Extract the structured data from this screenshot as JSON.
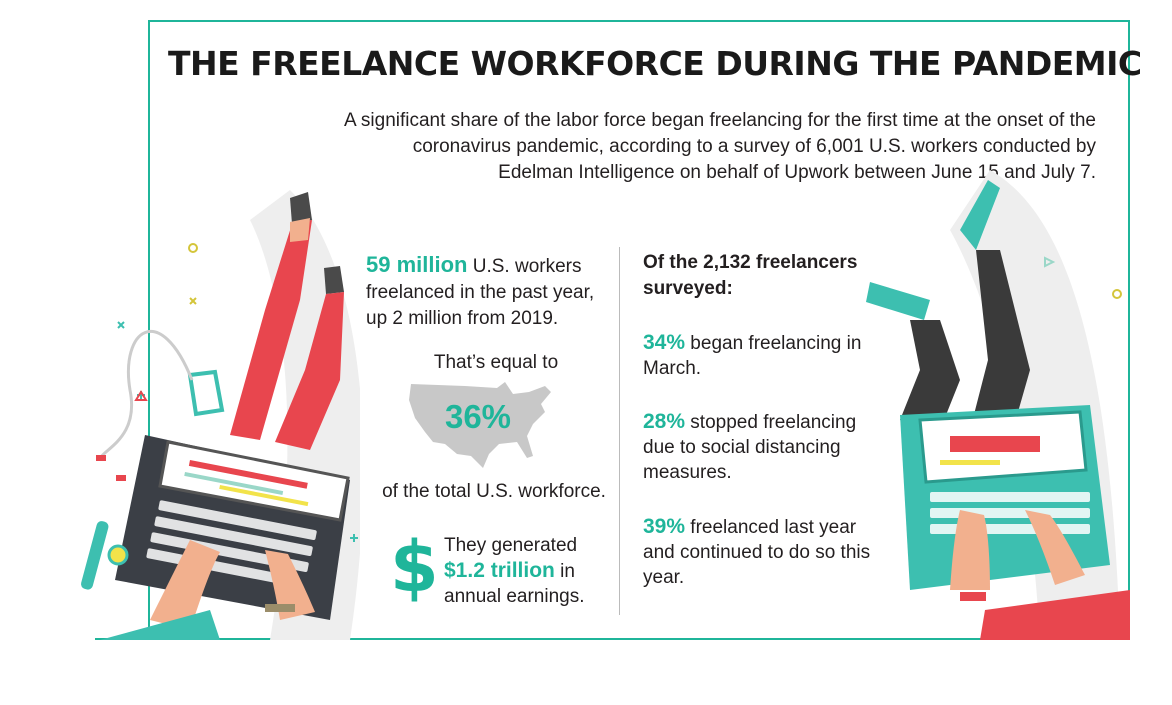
{
  "title": "THE FREELANCE WORKFORCE DURING THE PANDEMIC",
  "subtitle": "A significant share of the labor force began freelancing for the first time at the onset of the coronavirus pandemic, according to a survey of 6,001 U.S. workers conducted by Edelman Intelligence on behalf of Upwork between June 15 and July 7.",
  "left": {
    "workers_highlight": "59 million",
    "workers_text": " U.S. workers freelanced in the past year, up 2 million from 2019.",
    "equal_label": "That’s equal to",
    "percent": "36%",
    "workforce_label": "of the total U.S. workforce.",
    "dollar_symbol": "$",
    "earnings_pre": "They generated",
    "earnings_highlight": "$1.2 trillion",
    "earnings_mid": " in",
    "earnings_post": "annual earnings."
  },
  "right": {
    "heading": "Of the 2,132 freelancers surveyed:",
    "facts": [
      {
        "highlight": "34%",
        "text": " began freelancing in March."
      },
      {
        "highlight": "28%",
        "text": " stopped freelancing due to social distancing measures."
      },
      {
        "highlight": "39%",
        "text": " freelanced last year and continued to do so this year."
      }
    ]
  },
  "colors": {
    "accent": "#1fb59a",
    "text": "#231f20",
    "map": "#c8c8c8",
    "pants_red": "#e8464e",
    "pants_dark": "#3a3a3a",
    "laptop_teal": "#3dbfb0"
  },
  "icons": [
    "us-map-icon",
    "dollar-icon",
    "earbuds-icon",
    "phone-icon",
    "watch-icon"
  ]
}
